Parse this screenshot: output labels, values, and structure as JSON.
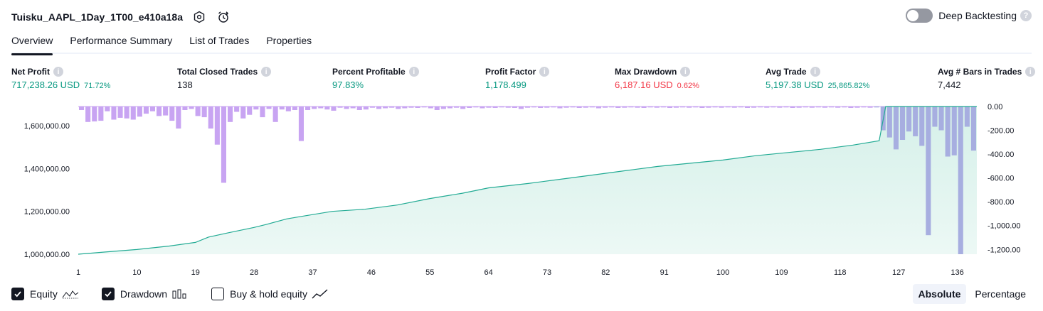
{
  "header": {
    "title": "Tuisku_AAPL_1Day_1T00_e410a18a",
    "deep_backtesting_label": "Deep Backtesting",
    "help_glyph": "?"
  },
  "tabs": [
    {
      "label": "Overview",
      "active": true
    },
    {
      "label": "Performance Summary",
      "active": false
    },
    {
      "label": "List of Trades",
      "active": false
    },
    {
      "label": "Properties",
      "active": false
    }
  ],
  "stats": [
    {
      "label": "Net Profit",
      "value": "717,238.26 USD",
      "sub": "71.72%",
      "tone": "pos"
    },
    {
      "label": "Total Closed Trades",
      "value": "138",
      "sub": "",
      "tone": "neu"
    },
    {
      "label": "Percent Profitable",
      "value": "97.83%",
      "sub": "",
      "tone": "pos"
    },
    {
      "label": "Profit Factor",
      "value": "1,178.499",
      "sub": "",
      "tone": "pos"
    },
    {
      "label": "Max Drawdown",
      "value": "6,187.16 USD",
      "sub": "0.62%",
      "tone": "neg"
    },
    {
      "label": "Avg Trade",
      "value": "5,197.38 USD",
      "sub": "25,865.82%",
      "tone": "pos"
    },
    {
      "label": "Avg # Bars in Trades",
      "value": "7,442",
      "sub": "",
      "tone": "neu"
    }
  ],
  "info_glyph": "i",
  "colors": {
    "equity_line": "#22ab94",
    "equity_fill": "#d5f0e9",
    "drawdown": "#c8a4f2",
    "drawdown_overlap": "#a7aee0",
    "positive": "#089981",
    "negative": "#f23645"
  },
  "chart_data": {
    "type": "area",
    "x_ticks": [
      "1",
      "10",
      "19",
      "28",
      "37",
      "46",
      "55",
      "64",
      "73",
      "82",
      "91",
      "100",
      "109",
      "118",
      "127",
      "136"
    ],
    "left_axis_ticks": [
      "1,600,000.00",
      "1,400,000.00",
      "1,200,000.00",
      "1,000,000.00"
    ],
    "left_axis_values": [
      1600000,
      1400000,
      1200000,
      1000000
    ],
    "right_axis_ticks": [
      "0.00",
      "-200.00",
      "-400.00",
      "-600.00",
      "-800.00",
      "-1,000.00",
      "-1,200.00"
    ],
    "right_axis_values": [
      0,
      -200,
      -400,
      -600,
      -800,
      -1000,
      -1200
    ],
    "equity_range": [
      1000000,
      1690000
    ],
    "drawdown_range": [
      -1240,
      0
    ],
    "trade_range": [
      1,
      139
    ],
    "equity_series": {
      "name": "Equity",
      "x": [
        1,
        5,
        10,
        15,
        19,
        21,
        24,
        28,
        30,
        33,
        35,
        40,
        45,
        50,
        55,
        60,
        64,
        70,
        75,
        80,
        85,
        90,
        95,
        100,
        105,
        110,
        115,
        120,
        124,
        125,
        130,
        135,
        139
      ],
      "y": [
        1000000,
        1010000,
        1022000,
        1038000,
        1055000,
        1080000,
        1100000,
        1125000,
        1140000,
        1165000,
        1175000,
        1200000,
        1210000,
        1230000,
        1260000,
        1285000,
        1310000,
        1330000,
        1350000,
        1370000,
        1390000,
        1410000,
        1425000,
        1440000,
        1460000,
        1475000,
        1490000,
        1510000,
        1530000,
        1690000,
        1690000,
        1690000,
        1690000
      ]
    },
    "drawdown_series": {
      "name": "Drawdown",
      "values": [
        -30,
        -130,
        -125,
        -120,
        -40,
        -110,
        -95,
        -100,
        -110,
        -85,
        -60,
        -40,
        -80,
        -75,
        -120,
        -185,
        -30,
        -20,
        -80,
        -90,
        -185,
        -320,
        -640,
        -130,
        -45,
        -100,
        -70,
        -25,
        -90,
        -20,
        -130,
        -25,
        -40,
        -30,
        -290,
        -30,
        -20,
        -15,
        -25,
        -35,
        -10,
        -20,
        -15,
        -30,
        -25,
        -10,
        -20,
        -15,
        -10,
        -20,
        -15,
        -10,
        -12,
        -8,
        -15,
        -30,
        -20,
        -15,
        -10,
        -20,
        -12,
        -8,
        -15,
        -10,
        -12,
        -8,
        -10,
        -12,
        -20,
        -10,
        -8,
        -12,
        -10,
        -8,
        -15,
        -10,
        -8,
        -12,
        -10,
        -8,
        -15,
        -10,
        -8,
        -12,
        -10,
        -8,
        -10,
        -12,
        -8,
        -10,
        -8,
        -12,
        -10,
        -8,
        -10,
        -8,
        -12,
        -10,
        -8,
        -10,
        -8,
        -10,
        -8,
        -12,
        -10,
        -8,
        -10,
        -8,
        -10,
        -8,
        -12,
        -10,
        -8,
        -10,
        -8,
        -10,
        -8,
        -10,
        -8,
        -12,
        -10,
        -8,
        -10,
        -8,
        -200,
        -260,
        -360,
        -280,
        -210,
        -250,
        -330,
        -1080,
        -170,
        -200,
        -420,
        -410,
        -1240,
        -170,
        -370
      ],
      "labels": [
        "Drawdown"
      ]
    },
    "legend": [
      "Equity",
      "Drawdown",
      "Buy & hold equity"
    ]
  },
  "legend": [
    {
      "label": "Equity",
      "checked": true,
      "icon": "equity-line-icon"
    },
    {
      "label": "Drawdown",
      "checked": true,
      "icon": "drawdown-bars-icon"
    },
    {
      "label": "Buy & hold equity",
      "checked": false,
      "icon": "buy-hold-line-icon"
    }
  ],
  "modes": [
    {
      "label": "Absolute",
      "active": true
    },
    {
      "label": "Percentage",
      "active": false
    }
  ]
}
